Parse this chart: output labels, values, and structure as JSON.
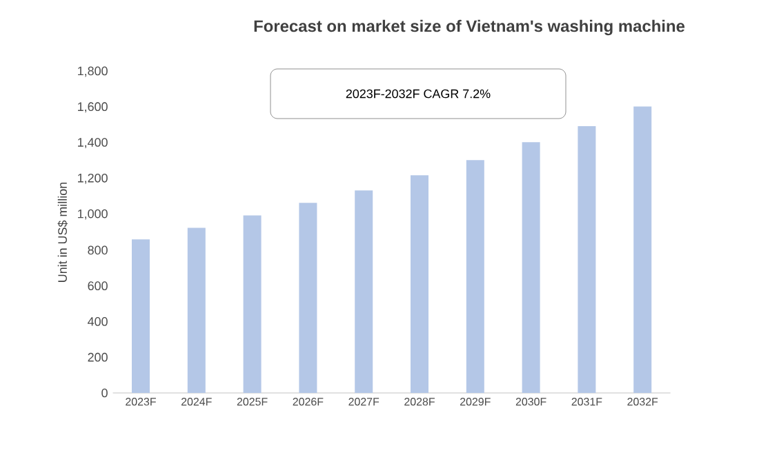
{
  "chart_data": {
    "type": "bar",
    "title": "Forecast on market size of Vietnam's washing machine",
    "ylabel": "Unit in US$ million",
    "annotations": [
      "2023F-2032F CAGR 7.2%"
    ],
    "categories": [
      "2023F",
      "2024F",
      "2025F",
      "2026F",
      "2027F",
      "2028F",
      "2029F",
      "2030F",
      "2031F",
      "2032F"
    ],
    "values": [
      860,
      925,
      995,
      1065,
      1135,
      1220,
      1305,
      1405,
      1495,
      1605
    ],
    "color": "#b4c7e7",
    "ylim": [
      0,
      1800
    ],
    "yticks": [
      0,
      200,
      400,
      600,
      800,
      {
        "value": 1000,
        "label": "1,000"
      },
      {
        "value": 1200,
        "label": "1,200"
      },
      {
        "value": 1400,
        "label": "1,400"
      },
      {
        "value": 1600,
        "label": "1,600"
      },
      {
        "value": 1800,
        "label": "1,800"
      }
    ]
  }
}
